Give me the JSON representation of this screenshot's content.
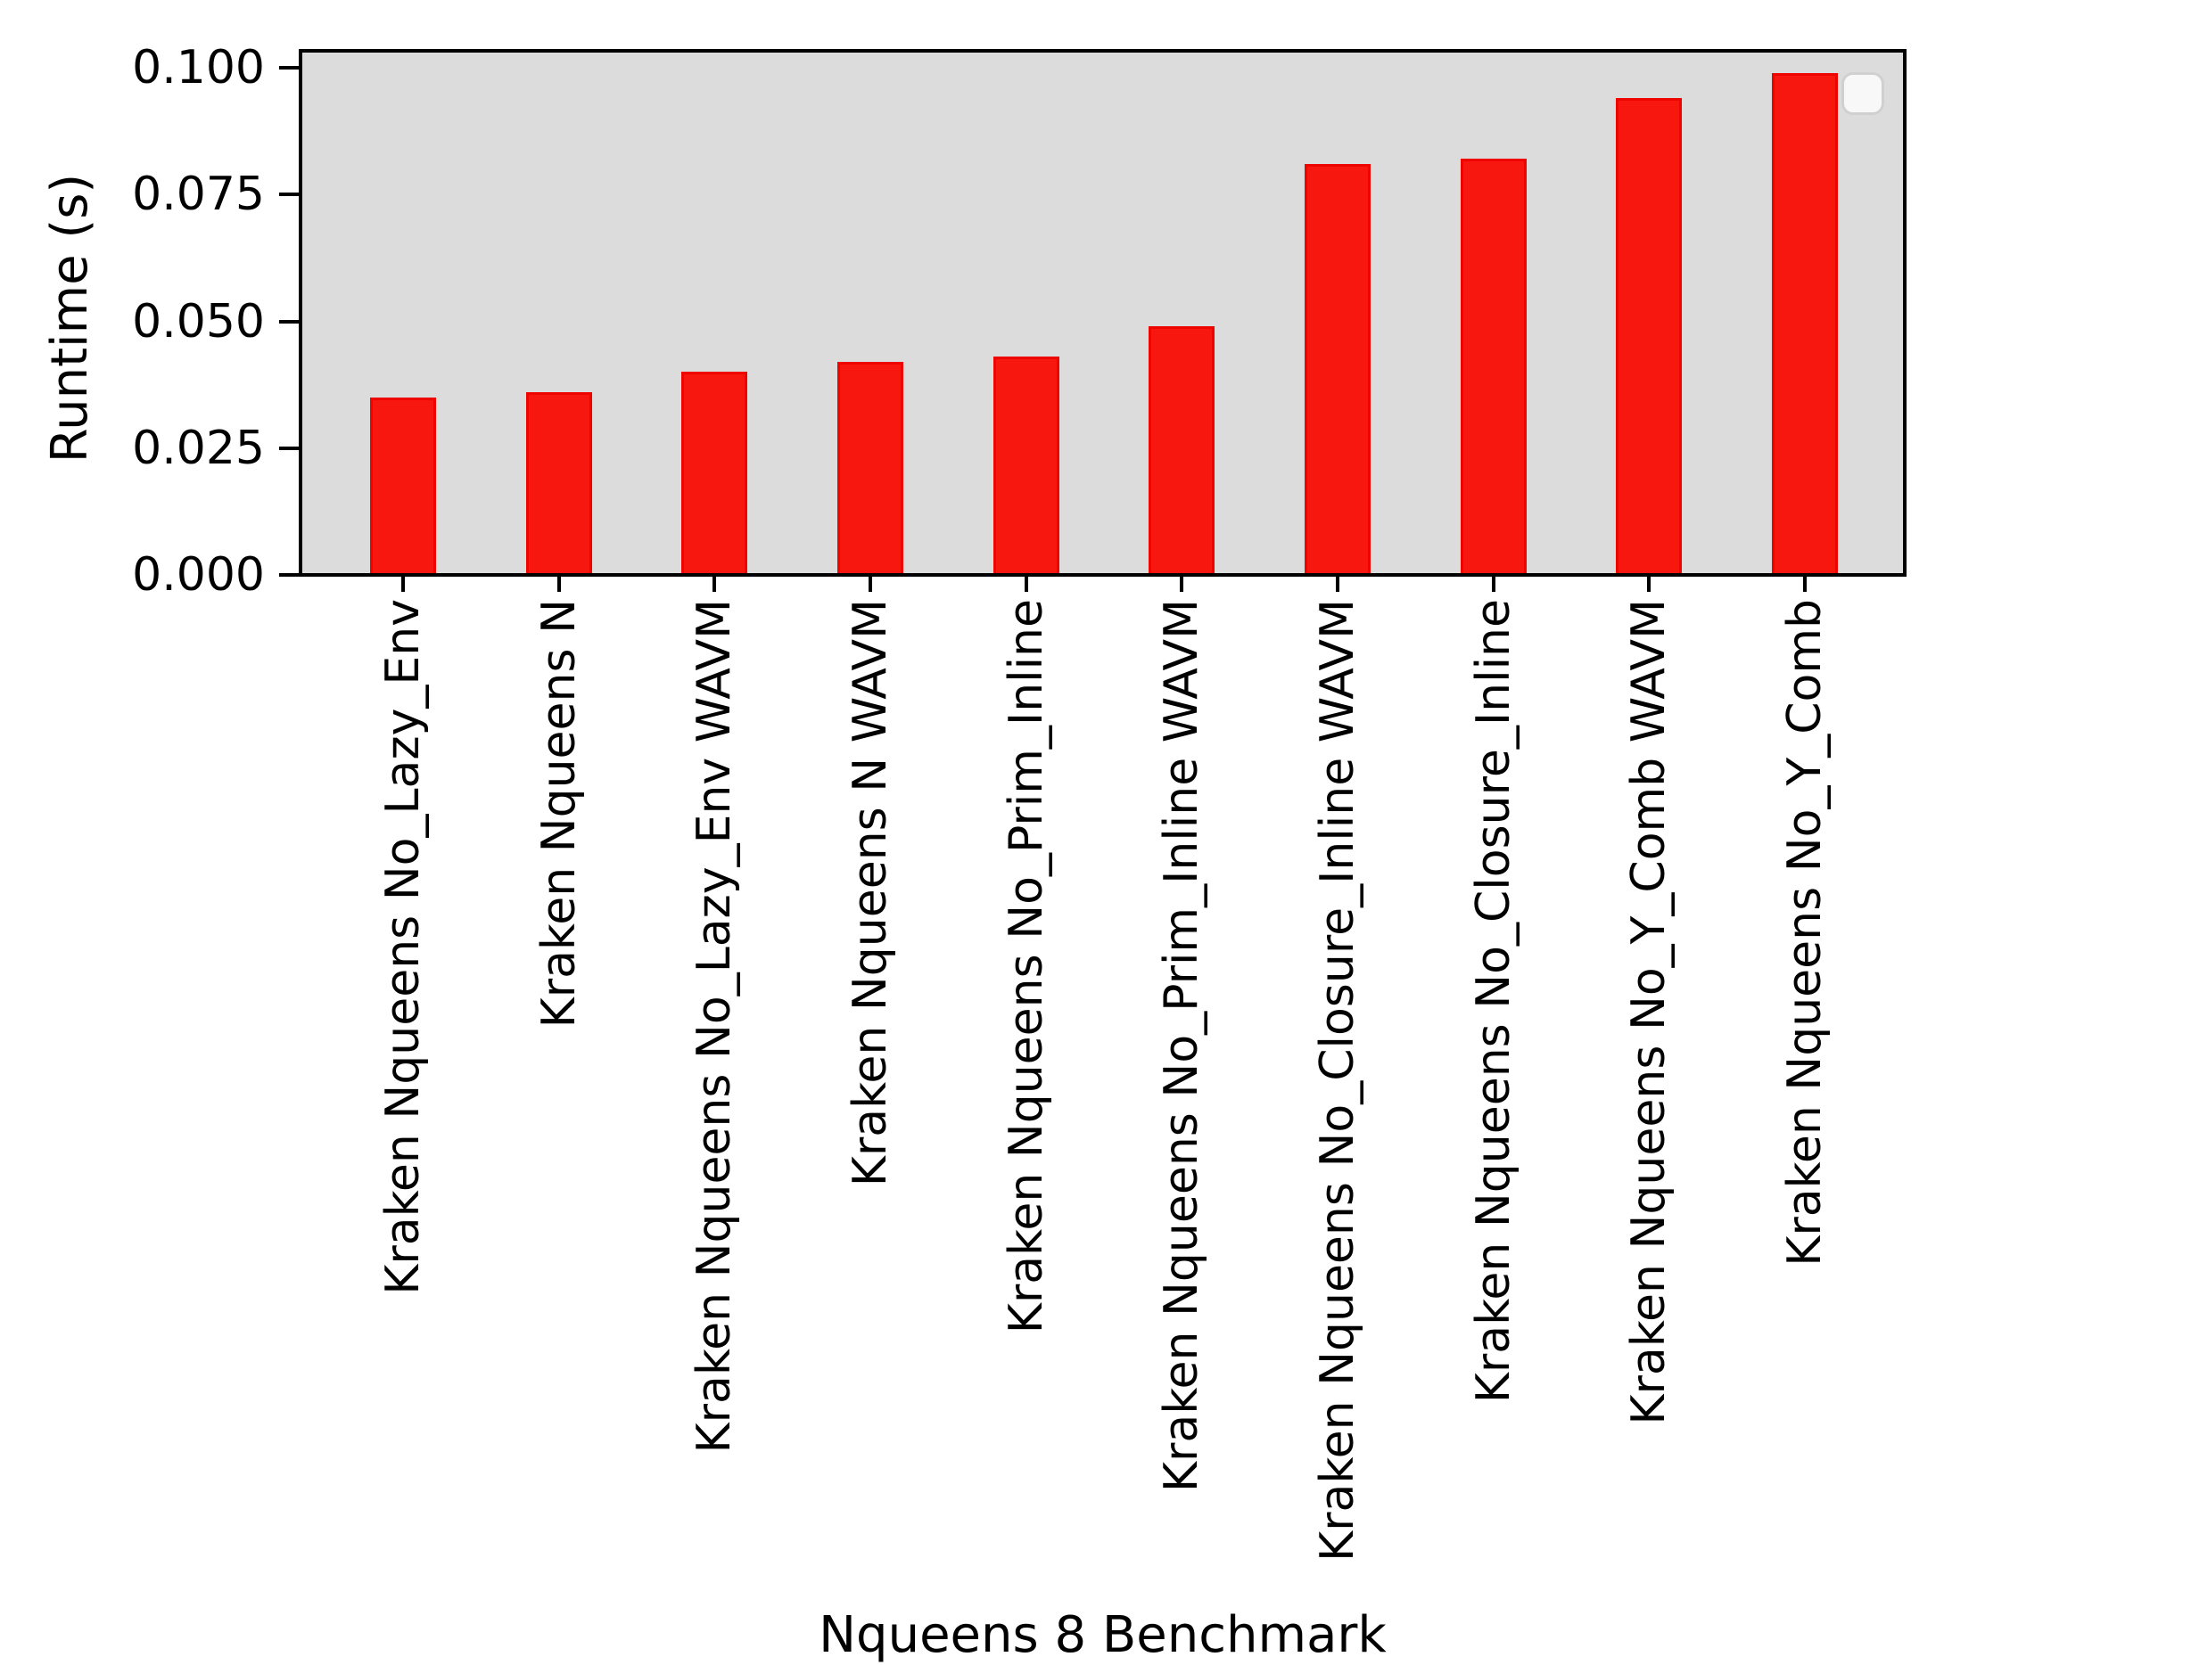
{
  "chart_data": {
    "type": "bar",
    "title": "",
    "xlabel": "Nqueens 8 Benchmark",
    "ylabel": "Runtime (s)",
    "categories": [
      "Kraken Nqueens No_Lazy_Env",
      "Kraken Nqueens N",
      "Kraken Nqueens No_Lazy_Env WAVM",
      "Kraken Nqueens N WAVM",
      "Kraken Nqueens No_Prim_Inline",
      "Kraken Nqueens No_Prim_Inline WAVM",
      "Kraken Nqueens No_Closure_Inline WAVM",
      "Kraken Nqueens No_Closure_Inline",
      "Kraken Nqueens No_Y_Comb WAVM",
      "Kraken Nqueens No_Y_Comb"
    ],
    "values": [
      0.035,
      0.036,
      0.04,
      0.042,
      0.043,
      0.049,
      0.081,
      0.082,
      0.094,
      0.099
    ],
    "ylim": [
      0.0,
      0.104
    ],
    "yticks": [
      0.0,
      0.025,
      0.05,
      0.075,
      0.1
    ],
    "ytick_labels": [
      "0.000",
      "0.025",
      "0.050",
      "0.075",
      "0.100"
    ],
    "grid": false,
    "legend": {
      "visible": true,
      "entries": [],
      "position": "upper right"
    },
    "colors": {
      "bar_fill": "#f7170f",
      "bar_edge": "#ee0500",
      "plot_background": "#dcdcdc",
      "figure_background": "#ffffff",
      "axis": "#000000",
      "legend_fill": "#f8f8f8",
      "legend_border": "#d0d0d0"
    }
  }
}
